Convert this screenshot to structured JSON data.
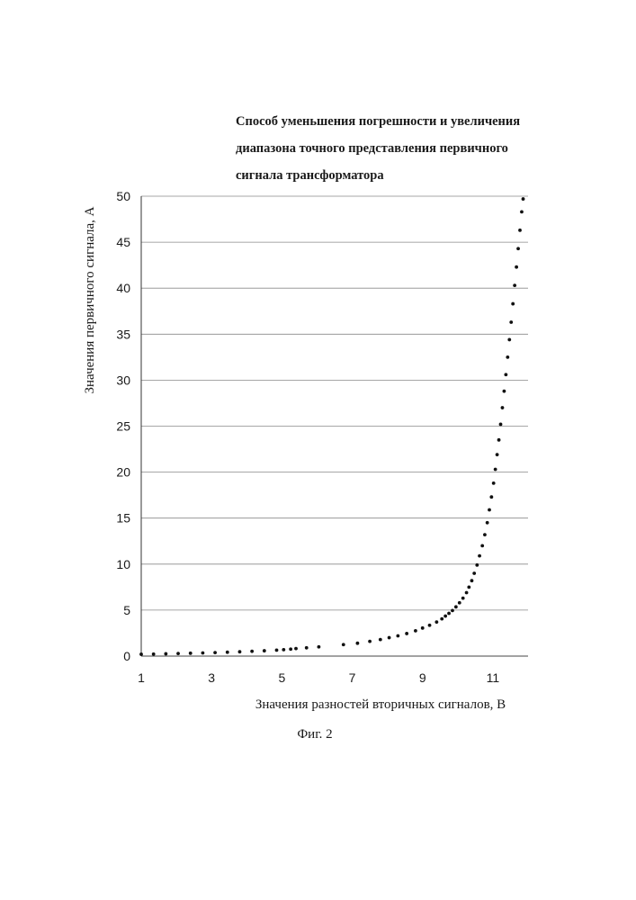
{
  "figure": {
    "title_lines": [
      "Способ уменьшения погрешности и увеличения",
      "диапазона точного представления первичного",
      "сигнала трансформатора"
    ],
    "caption": "Фиг. 2"
  },
  "chart_data": {
    "type": "scatter",
    "xlabel": "Значения разностей вторичных сигналов, В",
    "ylabel": "Значения первичного сигнала, А",
    "xlim": [
      1,
      12
    ],
    "ylim": [
      0,
      50
    ],
    "x_ticks": [
      1,
      3,
      5,
      7,
      9,
      11
    ],
    "y_ticks": [
      0,
      5,
      10,
      15,
      20,
      25,
      30,
      35,
      40,
      45,
      50
    ],
    "grid": "horizontal",
    "legend": "none",
    "marker_color": "#111111",
    "series": [
      {
        "points": [
          [
            1.0,
            0.2
          ],
          [
            1.35,
            0.22
          ],
          [
            1.7,
            0.25
          ],
          [
            2.05,
            0.28
          ],
          [
            2.4,
            0.31
          ],
          [
            2.75,
            0.34
          ],
          [
            3.1,
            0.38
          ],
          [
            3.45,
            0.42
          ],
          [
            3.8,
            0.47
          ],
          [
            4.15,
            0.52
          ],
          [
            4.5,
            0.58
          ],
          [
            4.85,
            0.65
          ],
          [
            5.05,
            0.7
          ],
          [
            5.25,
            0.76
          ],
          [
            5.4,
            0.82
          ],
          [
            5.7,
            0.9
          ],
          [
            6.05,
            1.0
          ],
          [
            6.75,
            1.25
          ],
          [
            7.15,
            1.4
          ],
          [
            7.5,
            1.6
          ],
          [
            7.8,
            1.8
          ],
          [
            8.05,
            2.0
          ],
          [
            8.3,
            2.2
          ],
          [
            8.55,
            2.45
          ],
          [
            8.8,
            2.75
          ],
          [
            9.0,
            3.05
          ],
          [
            9.2,
            3.35
          ],
          [
            9.4,
            3.7
          ],
          [
            9.55,
            4.05
          ],
          [
            9.65,
            4.35
          ],
          [
            9.75,
            4.65
          ],
          [
            9.85,
            4.95
          ],
          [
            9.95,
            5.35
          ],
          [
            10.05,
            5.8
          ],
          [
            10.15,
            6.3
          ],
          [
            10.25,
            6.9
          ],
          [
            10.32,
            7.5
          ],
          [
            10.4,
            8.2
          ],
          [
            10.47,
            9.0
          ],
          [
            10.55,
            9.9
          ],
          [
            10.62,
            10.9
          ],
          [
            10.7,
            12.0
          ],
          [
            10.77,
            13.2
          ],
          [
            10.84,
            14.5
          ],
          [
            10.9,
            15.9
          ],
          [
            10.96,
            17.3
          ],
          [
            11.02,
            18.8
          ],
          [
            11.07,
            20.3
          ],
          [
            11.12,
            21.9
          ],
          [
            11.17,
            23.5
          ],
          [
            11.22,
            25.2
          ],
          [
            11.27,
            27.0
          ],
          [
            11.32,
            28.8
          ],
          [
            11.37,
            30.6
          ],
          [
            11.42,
            32.5
          ],
          [
            11.47,
            34.4
          ],
          [
            11.52,
            36.3
          ],
          [
            11.57,
            38.3
          ],
          [
            11.62,
            40.3
          ],
          [
            11.67,
            42.3
          ],
          [
            11.72,
            44.3
          ],
          [
            11.77,
            46.3
          ],
          [
            11.82,
            48.3
          ],
          [
            11.86,
            49.7
          ]
        ]
      }
    ]
  }
}
